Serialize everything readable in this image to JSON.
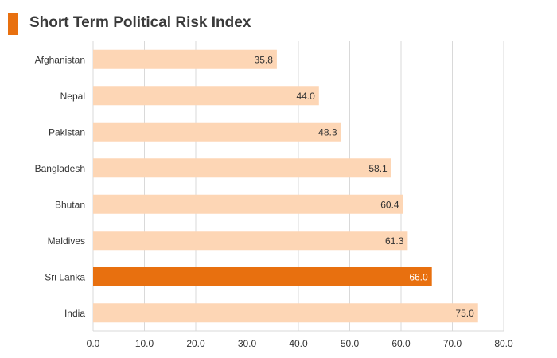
{
  "chart_data": {
    "type": "bar",
    "orientation": "horizontal",
    "title": "Short Term Political Risk Index",
    "categories": [
      "Afghanistan",
      "Nepal",
      "Pakistan",
      "Bangladesh",
      "Bhutan",
      "Maldives",
      "Sri Lanka",
      "India"
    ],
    "values": [
      35.8,
      44.0,
      48.3,
      58.1,
      60.4,
      61.3,
      66.0,
      75.0
    ],
    "value_labels": [
      "35.8",
      "44.0",
      "48.3",
      "58.1",
      "60.4",
      "61.3",
      "66.0",
      "75.0"
    ],
    "highlight": "Sri Lanka",
    "xlim": [
      0,
      80
    ],
    "xticks": [
      0,
      10,
      20,
      30,
      40,
      50,
      60,
      70,
      80
    ],
    "xtick_labels": [
      "0.0",
      "10.0",
      "20.0",
      "30.0",
      "40.0",
      "50.0",
      "60.0",
      "70.0",
      "80.0"
    ],
    "xlabel": "",
    "ylabel": "",
    "grid": true
  },
  "colors": {
    "accent": "#e8700f",
    "bar": "#fdd6b5",
    "highlight": "#e8700f",
    "grid": "#d9d9d9",
    "text": "#333333",
    "highlight_text": "#ffffff"
  }
}
